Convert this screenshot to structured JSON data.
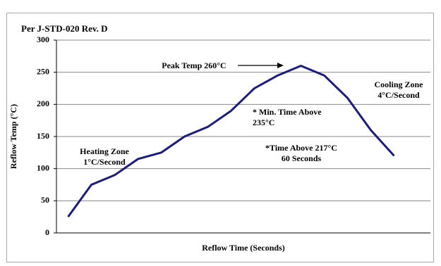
{
  "chart_data": {
    "type": "line",
    "title": "Per J-STD-020 Rev. D",
    "x_label": "Reflow Time (Seconds)",
    "y_label": "Reflow Temp (°C)",
    "categories": [
      null,
      null,
      null,
      null,
      null,
      null,
      null,
      null,
      null,
      null,
      null,
      null,
      null,
      null,
      null,
      null
    ],
    "values": [
      25,
      75,
      90,
      115,
      125,
      150,
      165,
      190,
      225,
      245,
      260,
      245,
      210,
      160,
      120,
      null
    ],
    "color": "#1c1c80",
    "ylim": [
      0,
      300
    ],
    "yticks": [
      0,
      50,
      100,
      150,
      200,
      250,
      300
    ],
    "grid": true,
    "annotations": [
      [
        "Peak Temp 260°C"
      ],
      [
        "* Min. Time Above",
        "235°C"
      ],
      [
        "*Time Above 217°C",
        "60 Seconds"
      ],
      [
        "Heating Zone",
        "1°C/Second"
      ],
      [
        "Cooling Zone",
        "4°C/Second"
      ]
    ]
  }
}
